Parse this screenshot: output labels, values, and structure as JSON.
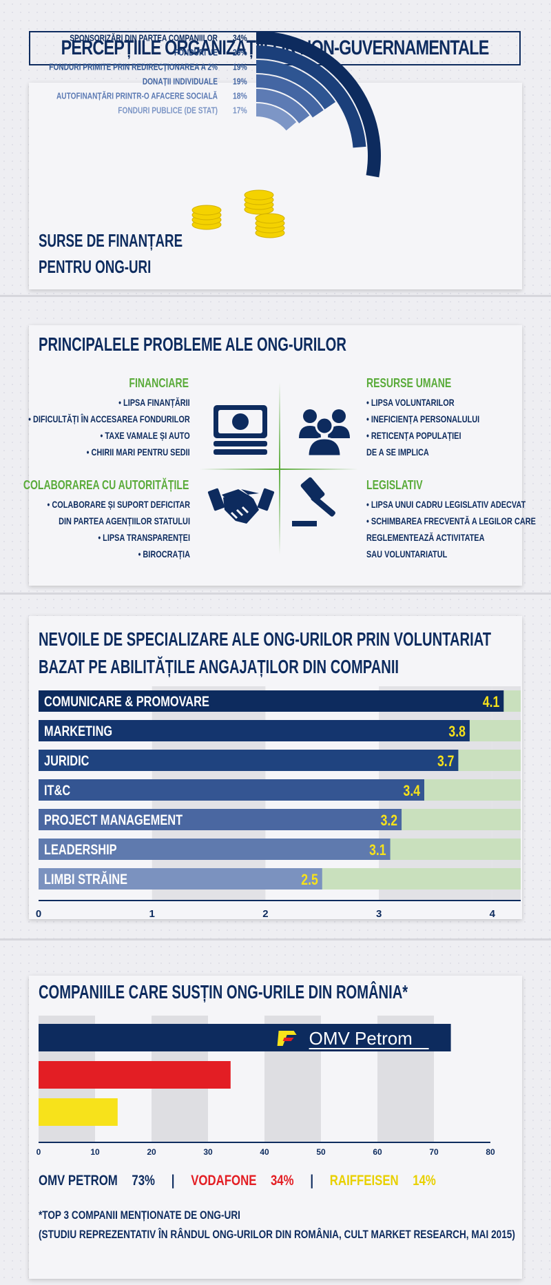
{
  "main_title": "PERCEPȚIILE ORGANIZAȚIILOR NON-GUVERNAMENTALE",
  "funding": {
    "title_line1": "SURSE DE FINANȚARE",
    "title_line2": "PENTRU ONG-URI",
    "colors": [
      "#0d2b5e",
      "#1b3f7a",
      "#2e5592",
      "#4466a3",
      "#5d7bb4",
      "#7d96c6"
    ]
  },
  "problems": {
    "title": "PRINCIPALELE PROBLEME ALE ONG-URILOR",
    "quadrants": [
      {
        "heading": "FINANCIARE",
        "icon": "money-icon",
        "items": [
          "• LIPSA FINANȚĂRII",
          "• DIFICULTĂȚI ÎN ACCESAREA FONDURILOR",
          "• TAXE VAMALE ȘI AUTO",
          "• CHIRII MARI PENTRU SEDII"
        ]
      },
      {
        "heading": "RESURSE UMANE",
        "icon": "people-icon",
        "items": [
          "• LIPSA VOLUNTARILOR",
          "• INEFICIENȚA PERSONALULUI",
          "• RETICENȚA POPULAȚIEI",
          "DE A SE IMPLICA"
        ]
      },
      {
        "heading": "COLABORAREA CU AUTORITĂȚILE",
        "icon": "handshake-icon",
        "items": [
          "• COLABORARE ȘI SUPORT DEFICITAR",
          "DIN PARTEA AGENȚIILOR STATULUI",
          "• LIPSA TRANSPARENȚEI",
          "• BIROCRAȚIA"
        ]
      },
      {
        "heading": "LEGISLATIV",
        "icon": "gavel-icon",
        "items": [
          "• LIPSA UNUI CADRU LEGISLATIV ADECVAT",
          "• SCHIMBAREA FRECVENTĂ A LEGILOR CARE",
          "REGLEMENTEAZĂ ACTIVITATEA",
          "SAU VOLUNTARIATUL"
        ]
      }
    ]
  },
  "skills": {
    "title_line1": "NEVOILE DE SPECIALIZARE ALE ONG-URILOR PRIN VOLUNTARIAT",
    "title_line2": "BAZAT PE ABILITĂȚILE ANGAJAȚILOR DIN COMPANII"
  },
  "companies": {
    "title": "COMPANIILE CARE SUSȚIN ONG-URILE DIN ROMÂNIA*",
    "logo_text": "OMV Petrom",
    "legend": [
      {
        "name": "OMV PETROM",
        "value": "73%",
        "color": "#0d2b5e"
      },
      {
        "name": "VODAFONE",
        "value": "34%",
        "color": "#e31e24"
      },
      {
        "name": "RAIFFEISEN",
        "value": "14%",
        "color": "#f7e21b"
      }
    ],
    "separator": "|",
    "footnote_line1": "*TOP 3 COMPANII MENȚIONATE DE ONG-URI",
    "footnote_line2": "(STUDIU REPREZENTATIV ÎN RÂNDUL ONG-URILOR DIN ROMÂNIA, CULT MARKET RESEARCH, MAI 2015)"
  },
  "chart_data": [
    {
      "type": "pie",
      "title": "",
      "categories": [
        "SPONSORIZĂRI DIN PARTEA COMPANIILOR",
        "FONDURI UE",
        "FONDURI PRIMITE PRIN REDIRECȚIONAREA A 2%",
        "DONAȚII INDIVIDUALE",
        "AUTOFINANȚĂRI PRINTR-O AFACERE SOCIALĂ",
        "FONDURI PUBLICE (DE STAT)"
      ],
      "values": [
        34,
        29,
        19,
        19,
        18,
        17
      ],
      "value_labels": [
        "34%",
        "29%",
        "19%",
        "19%",
        "18%",
        "17%"
      ]
    },
    {
      "type": "bar",
      "orientation": "horizontal",
      "categories": [
        "COMUNICARE & PROMOVARE",
        "MARKETING",
        "JURIDIC",
        "IT&C",
        "PROJECT MANAGEMENT",
        "LEADERSHIP",
        "LIMBI STRĂINE"
      ],
      "values": [
        4.1,
        3.8,
        3.7,
        3.4,
        3.2,
        3.1,
        2.5
      ],
      "xlim": [
        0,
        4.25
      ],
      "xticks": [
        "0",
        "1",
        "2",
        "3",
        "4"
      ],
      "bar_colors": [
        "#0d2b5e",
        "#14356e",
        "#1f437f",
        "#345592",
        "#4a67a1",
        "#5f7aae",
        "#7b92bf"
      ],
      "value_color": "#f7e21b",
      "background_color": "#c9e0bd"
    },
    {
      "type": "bar",
      "orientation": "horizontal",
      "categories": [
        "OMV PETROM",
        "VODAFONE",
        "RAIFFEISEN"
      ],
      "values": [
        73,
        34,
        14
      ],
      "xlim": [
        0,
        80
      ],
      "xticks": [
        "0",
        "10",
        "20",
        "30",
        "40",
        "50",
        "60",
        "70",
        "80"
      ],
      "bar_colors": [
        "#0d2b5e",
        "#e31e24",
        "#f7e21b"
      ]
    }
  ]
}
